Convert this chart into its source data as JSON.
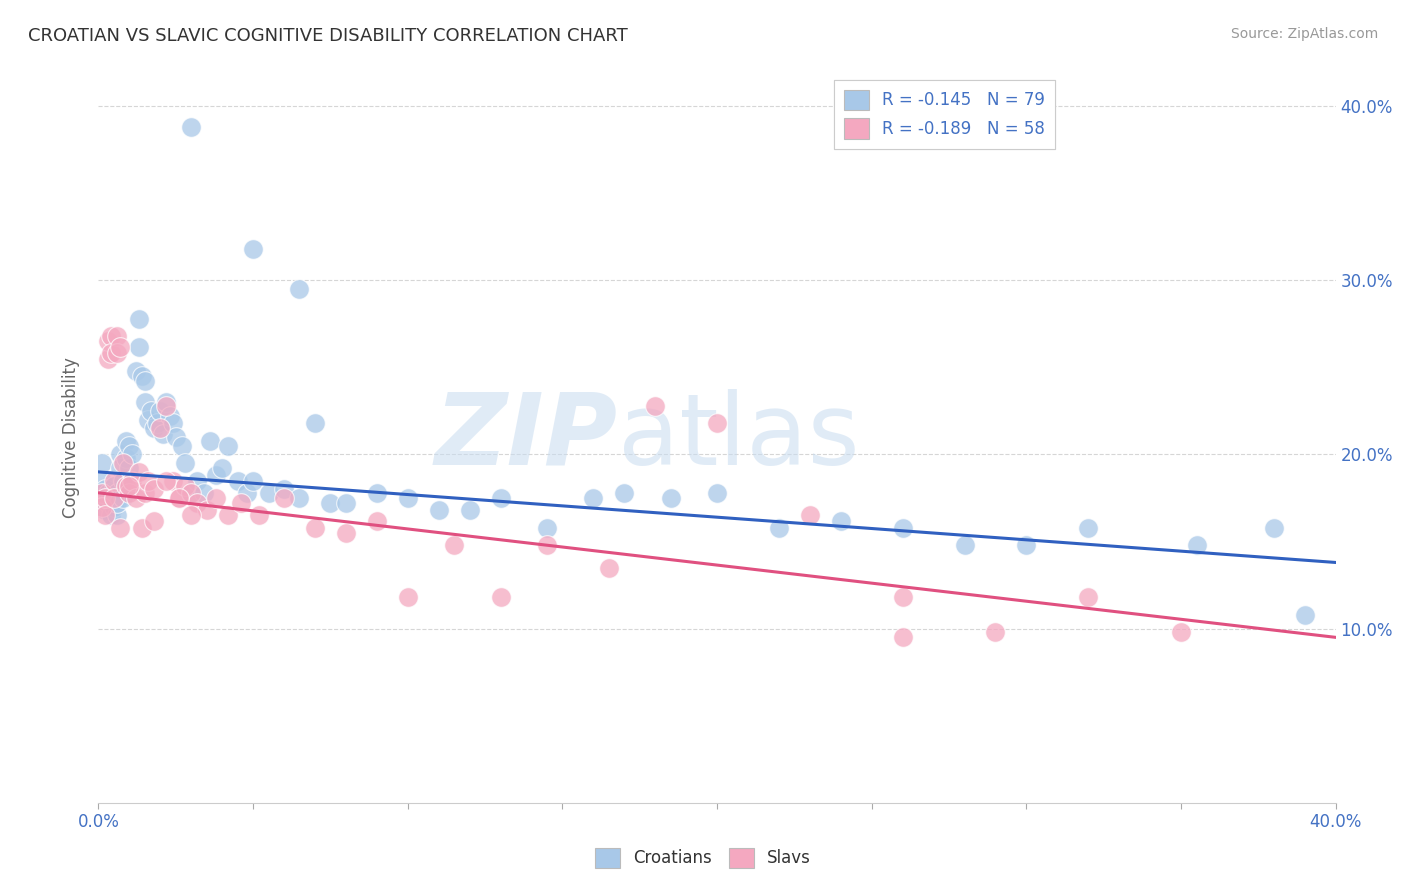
{
  "title": "CROATIAN VS SLAVIC COGNITIVE DISABILITY CORRELATION CHART",
  "source": "Source: ZipAtlas.com",
  "ylabel": "Cognitive Disability",
  "croatians_label": "Croatians",
  "slavs_label": "Slavs",
  "legend_line1": "R = -0.145   N = 79",
  "legend_line2": "R = -0.189   N = 58",
  "blue_color": "#A8C8E8",
  "pink_color": "#F4A8C0",
  "blue_line_color": "#3060C0",
  "pink_line_color": "#E05080",
  "watermark_zip": "ZIP",
  "watermark_atlas": "atlas",
  "x_min": 0.0,
  "x_max": 0.4,
  "y_min": 0.0,
  "y_max": 0.42,
  "y_ticks": [
    0.1,
    0.2,
    0.3,
    0.4
  ],
  "blue_trendline_x": [
    0.0,
    0.4
  ],
  "blue_trendline_y": [
    0.19,
    0.138
  ],
  "pink_trendline_x": [
    0.0,
    0.4
  ],
  "pink_trendline_y": [
    0.178,
    0.095
  ],
  "grid_color": "#CCCCCC",
  "background_color": "#FFFFFF",
  "croatians_x": [
    0.001,
    0.001,
    0.002,
    0.002,
    0.003,
    0.003,
    0.004,
    0.004,
    0.005,
    0.005,
    0.005,
    0.006,
    0.006,
    0.006,
    0.007,
    0.007,
    0.008,
    0.008,
    0.009,
    0.009,
    0.01,
    0.01,
    0.011,
    0.012,
    0.013,
    0.013,
    0.014,
    0.015,
    0.015,
    0.016,
    0.017,
    0.018,
    0.019,
    0.02,
    0.021,
    0.022,
    0.023,
    0.024,
    0.025,
    0.027,
    0.028,
    0.03,
    0.032,
    0.034,
    0.036,
    0.038,
    0.04,
    0.042,
    0.045,
    0.048,
    0.05,
    0.055,
    0.06,
    0.065,
    0.07,
    0.075,
    0.08,
    0.09,
    0.1,
    0.11,
    0.12,
    0.13,
    0.145,
    0.16,
    0.17,
    0.185,
    0.2,
    0.22,
    0.24,
    0.26,
    0.28,
    0.3,
    0.32,
    0.355,
    0.38,
    0.39,
    0.03,
    0.05,
    0.065
  ],
  "croatians_y": [
    0.195,
    0.185,
    0.18,
    0.168,
    0.178,
    0.172,
    0.175,
    0.165,
    0.182,
    0.175,
    0.17,
    0.178,
    0.165,
    0.172,
    0.2,
    0.192,
    0.185,
    0.175,
    0.208,
    0.198,
    0.205,
    0.192,
    0.2,
    0.248,
    0.262,
    0.278,
    0.245,
    0.23,
    0.242,
    0.22,
    0.225,
    0.215,
    0.218,
    0.225,
    0.212,
    0.23,
    0.222,
    0.218,
    0.21,
    0.205,
    0.195,
    0.178,
    0.185,
    0.178,
    0.208,
    0.188,
    0.192,
    0.205,
    0.185,
    0.178,
    0.185,
    0.178,
    0.18,
    0.175,
    0.218,
    0.172,
    0.172,
    0.178,
    0.175,
    0.168,
    0.168,
    0.175,
    0.158,
    0.175,
    0.178,
    0.175,
    0.178,
    0.158,
    0.162,
    0.158,
    0.148,
    0.148,
    0.158,
    0.148,
    0.158,
    0.108,
    0.388,
    0.318,
    0.295
  ],
  "slavs_x": [
    0.001,
    0.001,
    0.002,
    0.002,
    0.003,
    0.003,
    0.004,
    0.004,
    0.005,
    0.005,
    0.006,
    0.006,
    0.007,
    0.008,
    0.009,
    0.01,
    0.011,
    0.012,
    0.013,
    0.015,
    0.016,
    0.018,
    0.02,
    0.022,
    0.024,
    0.026,
    0.028,
    0.03,
    0.032,
    0.035,
    0.038,
    0.042,
    0.046,
    0.052,
    0.06,
    0.07,
    0.08,
    0.09,
    0.1,
    0.115,
    0.13,
    0.145,
    0.165,
    0.18,
    0.2,
    0.23,
    0.26,
    0.29,
    0.32,
    0.35,
    0.007,
    0.01,
    0.014,
    0.018,
    0.022,
    0.026,
    0.03,
    0.26
  ],
  "slavs_y": [
    0.178,
    0.17,
    0.175,
    0.165,
    0.255,
    0.265,
    0.268,
    0.258,
    0.185,
    0.175,
    0.268,
    0.258,
    0.262,
    0.195,
    0.182,
    0.178,
    0.185,
    0.175,
    0.19,
    0.178,
    0.185,
    0.18,
    0.215,
    0.228,
    0.185,
    0.175,
    0.182,
    0.178,
    0.172,
    0.168,
    0.175,
    0.165,
    0.172,
    0.165,
    0.175,
    0.158,
    0.155,
    0.162,
    0.118,
    0.148,
    0.118,
    0.148,
    0.135,
    0.228,
    0.218,
    0.165,
    0.118,
    0.098,
    0.118,
    0.098,
    0.158,
    0.182,
    0.158,
    0.162,
    0.185,
    0.175,
    0.165,
    0.095
  ]
}
